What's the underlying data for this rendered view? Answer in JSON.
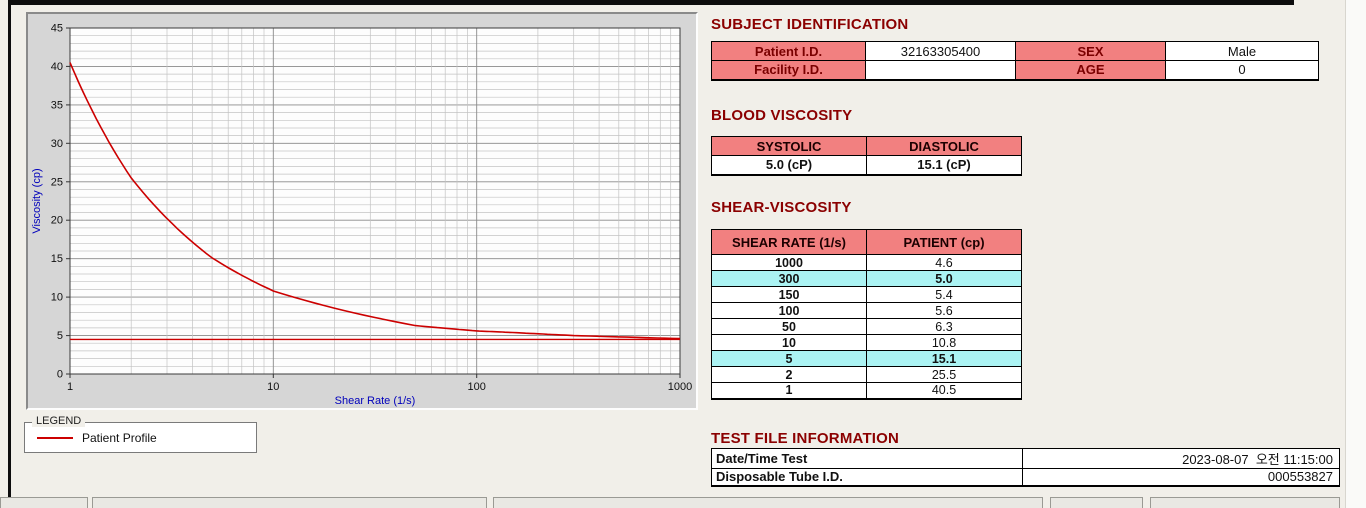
{
  "colors": {
    "title": "#8b0000",
    "header_bg": "#f28080",
    "highlight_bg": "#abf3f3",
    "series": "#cc0000",
    "axis_label": "#0000bb"
  },
  "chart": {
    "legend_title": "LEGEND",
    "legend_item": "Patient Profile"
  },
  "chart_data": {
    "type": "line",
    "title": "",
    "xlabel": "Shear Rate (1/s)",
    "ylabel": "Viscosity (cp)",
    "x_scale": "log",
    "xlim": [
      1,
      1000
    ],
    "ylim": [
      0,
      45
    ],
    "x_ticks": [
      1,
      10,
      100,
      1000
    ],
    "y_ticks": [
      0,
      5,
      10,
      15,
      20,
      25,
      30,
      35,
      40,
      45
    ],
    "grid": "dense log minor grid on",
    "legend_position": "below-left",
    "series": [
      {
        "name": "Patient Profile",
        "color": "#cc0000",
        "x": [
          1,
          2,
          5,
          10,
          50,
          100,
          150,
          300,
          1000
        ],
        "values": [
          40.5,
          25.5,
          15.1,
          10.8,
          6.3,
          5.6,
          5.4,
          5.0,
          4.6
        ]
      }
    ],
    "reference_line": {
      "y": 4.5,
      "color": "#cc0000"
    }
  },
  "subject_identification": {
    "title": "SUBJECT IDENTIFICATION",
    "rows": [
      {
        "label_a": "Patient I.D.",
        "value_a": "32163305400",
        "label_b": "SEX",
        "value_b": "Male"
      },
      {
        "label_a": "Facility I.D.",
        "value_a": "",
        "label_b": "AGE",
        "value_b": "0"
      }
    ]
  },
  "blood_viscosity": {
    "title": "BLOOD VISCOSITY",
    "systolic_label": "SYSTOLIC",
    "diastolic_label": "DIASTOLIC",
    "systolic_value": "5.0 (cP)",
    "diastolic_value": "15.1 (cP)"
  },
  "shear_viscosity": {
    "title": "SHEAR-VISCOSITY",
    "col_rate": "SHEAR RATE (1/s)",
    "col_patient": "PATIENT (cp)",
    "rows": [
      {
        "rate": "1000",
        "value": "4.6",
        "highlight": false
      },
      {
        "rate": "300",
        "value": "5.0",
        "highlight": true
      },
      {
        "rate": "150",
        "value": "5.4",
        "highlight": false
      },
      {
        "rate": "100",
        "value": "5.6",
        "highlight": false
      },
      {
        "rate": "50",
        "value": "6.3",
        "highlight": false
      },
      {
        "rate": "10",
        "value": "10.8",
        "highlight": false
      },
      {
        "rate": "5",
        "value": "15.1",
        "highlight": true
      },
      {
        "rate": "2",
        "value": "25.5",
        "highlight": false
      },
      {
        "rate": "1",
        "value": "40.5",
        "highlight": false
      }
    ]
  },
  "test_file_information": {
    "title": "TEST FILE INFORMATION",
    "rows": [
      {
        "label": "Date/Time Test",
        "value": "2023-08-07  오전 11:15:00"
      },
      {
        "label": "Disposable Tube I.D.",
        "value": "000553827"
      }
    ]
  }
}
